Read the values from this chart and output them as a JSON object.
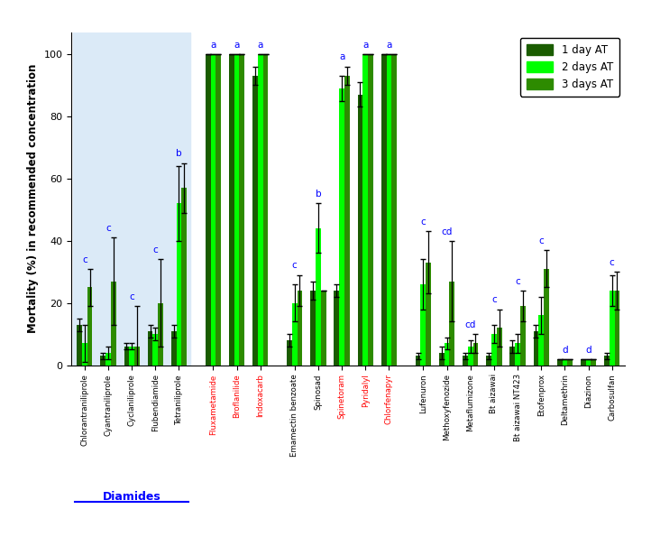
{
  "insecticides": [
    "Chlorantraniliprole",
    "Cyantraniliprole",
    "Cyclaniliprole",
    "Flubendiamide",
    "Tetraniliprole",
    "Fluxametamide",
    "Broflanilide",
    "Indoxacarb",
    "Emamectin benzoate",
    "Spinosad",
    "Spinetoram",
    "Pyridalyl",
    "Chlorfenapyr",
    "Lufenuron",
    "Methoxyfenozide",
    "Metaflumizone",
    "Bt aizawai",
    "Bt aizawai NT423",
    "Etofenprox",
    "Deltamethrin",
    "Diazinon",
    "Carbosulfan"
  ],
  "day1": [
    13,
    3,
    6,
    11,
    11,
    100,
    100,
    93,
    8,
    24,
    24,
    87,
    100,
    3,
    4,
    3,
    3,
    6,
    11,
    2,
    2,
    3
  ],
  "day2": [
    7,
    4,
    6,
    10,
    52,
    100,
    100,
    100,
    20,
    44,
    89,
    100,
    100,
    26,
    7,
    6,
    10,
    7,
    16,
    2,
    2,
    24
  ],
  "day3": [
    25,
    27,
    6,
    20,
    57,
    100,
    100,
    100,
    24,
    24,
    93,
    100,
    100,
    33,
    27,
    7,
    12,
    19,
    31,
    2,
    2,
    24
  ],
  "day1_err": [
    2,
    1,
    1,
    2,
    2,
    0,
    0,
    3,
    2,
    3,
    2,
    4,
    0,
    1,
    2,
    1,
    1,
    2,
    2,
    0,
    0,
    1
  ],
  "day2_err": [
    6,
    2,
    1,
    2,
    12,
    0,
    0,
    0,
    6,
    8,
    4,
    0,
    0,
    8,
    2,
    2,
    3,
    3,
    6,
    0,
    0,
    5
  ],
  "day3_err": [
    6,
    14,
    13,
    14,
    8,
    0,
    0,
    0,
    5,
    0,
    3,
    0,
    0,
    10,
    13,
    3,
    6,
    5,
    6,
    0,
    0,
    6
  ],
  "letters": [
    "c",
    "c",
    "c",
    "c",
    "b",
    "a",
    "a",
    "a",
    "c",
    "b",
    "a",
    "a",
    "a",
    "c",
    "cd",
    "cd",
    "c",
    "c",
    "c",
    "d",
    "d",
    "c"
  ],
  "red_labels": [
    "Fluxametamide",
    "Broflanilide",
    "Indoxacarb",
    "Spinetoram",
    "Pyridalyl",
    "Chlorfenapyr"
  ],
  "diamides_bg": "#dbeaf7",
  "bar_color_day1": "#1a5c00",
  "bar_color_day2": "#00ff00",
  "bar_color_day3": "#2d8b00",
  "bar_width": 0.22,
  "ylabel": "Mortality (%) in recommended concentration",
  "ylim": [
    0,
    107
  ],
  "yticks": [
    0,
    20,
    40,
    60,
    80,
    100
  ],
  "legend_labels": [
    "1 day AT",
    "2 days AT",
    "3 days AT"
  ],
  "diamides_label": "Diamides",
  "group_gaps": {
    "4": 0.45,
    "7": 0.45,
    "12": 0.45
  }
}
